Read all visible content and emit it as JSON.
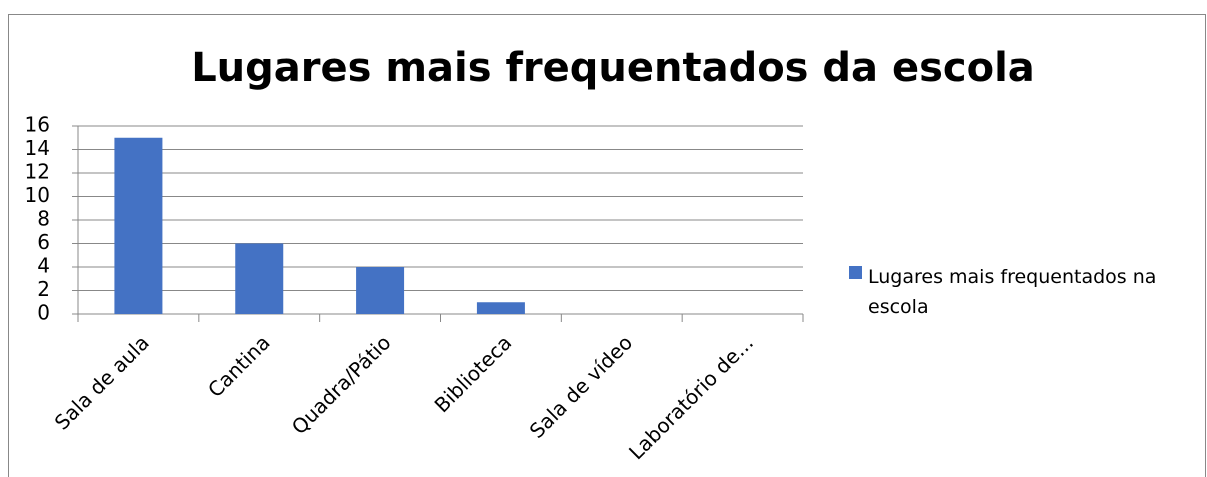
{
  "chart_data": {
    "type": "bar",
    "title": "Lugares mais frequentados da escola",
    "categories": [
      "Sala de aula",
      "Cantina",
      "Quadra/Pátio",
      "Biblioteca",
      "Sala de vídeo",
      "Laboratório de..."
    ],
    "series": [
      {
        "name": "Lugares mais frequentados na escola",
        "color": "#4472c4",
        "values": [
          15,
          6,
          4,
          1,
          0,
          0
        ]
      }
    ],
    "ylim": [
      0,
      16
    ],
    "yticks": [
      0,
      2,
      4,
      6,
      8,
      10,
      12,
      14,
      16
    ],
    "grid": true,
    "legend": "right"
  }
}
